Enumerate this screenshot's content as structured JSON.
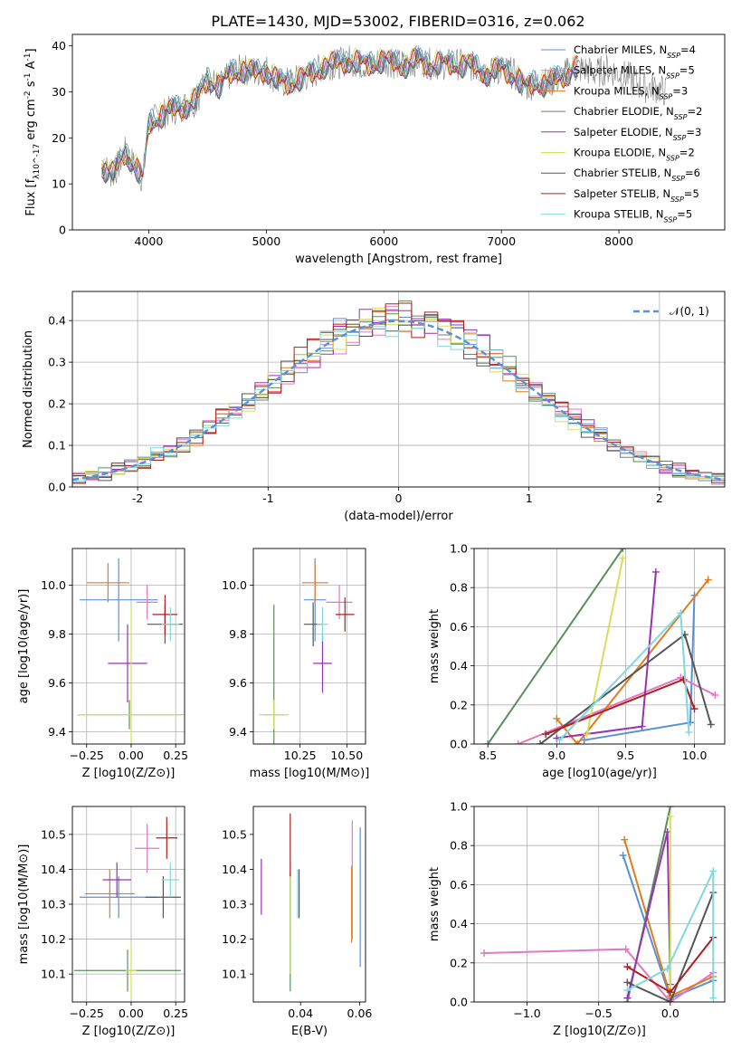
{
  "figure": {
    "title": "PLATE=1430, MJD=53002, FIBERID=0316, z=0.062"
  },
  "chart_data": [
    {
      "id": "spectrum",
      "type": "line",
      "xlabel": "wavelength [Angstrom, rest frame]",
      "ylabel": "Flux [f_λ10^-17 erg cm^-2 s^-1 A^-1]",
      "xlim": [
        3350,
        8900
      ],
      "ylim": [
        0,
        42.5
      ],
      "xticks": [
        4000,
        5000,
        6000,
        7000,
        8000
      ],
      "yticks": [
        0,
        10,
        20,
        30,
        40
      ],
      "grid": false,
      "legend_position": "lower-right",
      "observed": {
        "color": "#808080",
        "x": [
          3600,
          3700,
          3800,
          3900,
          3950,
          4000,
          4100,
          4200,
          4300,
          4400,
          4500,
          4600,
          4700,
          4800,
          4900,
          5000,
          5100,
          5200,
          5300,
          5400,
          5500,
          5600,
          5700,
          5800,
          5900,
          6000,
          6100,
          6200,
          6300,
          6400,
          6500,
          6600,
          6700,
          6800,
          6900,
          7000,
          7100,
          7200,
          7300,
          7400,
          7500,
          7600,
          7700,
          7800,
          7900,
          8000,
          8100,
          8200,
          8300,
          8400
        ],
        "y": [
          14,
          12,
          17,
          13,
          11,
          23,
          25,
          26,
          27,
          28,
          33,
          31,
          34,
          35,
          34,
          35,
          32,
          32,
          33,
          34,
          36,
          36,
          37,
          36,
          36,
          37,
          36,
          36,
          37,
          36,
          36,
          36,
          36,
          35,
          34,
          35,
          34,
          31,
          32,
          32,
          33,
          35,
          35,
          34,
          35,
          34,
          33,
          31,
          31,
          30
        ]
      },
      "series": [
        {
          "name": "Chabrier MILES",
          "nssp": "4",
          "color": "#5b8fd6",
          "offset": 0.3,
          "phase": 0.0
        },
        {
          "name": "Salpeter MILES",
          "nssp": "5",
          "color": "#e377c2",
          "offset": -0.3,
          "phase": 1.1
        },
        {
          "name": "Kroupa MILES",
          "nssp": "3",
          "color": "#e07b1f",
          "offset": 0.2,
          "phase": 2.2
        },
        {
          "name": "Chabrier ELODIE",
          "nssp": "2",
          "color": "#5a8f5a",
          "offset": -0.2,
          "phase": 0.5
        },
        {
          "name": "Salpeter ELODIE",
          "nssp": "3",
          "color": "#9a30b4",
          "offset": 0.1,
          "phase": 1.7
        },
        {
          "name": "Kroupa ELODIE",
          "nssp": "2",
          "color": "#d4e05a",
          "offset": 0.4,
          "phase": 2.9
        },
        {
          "name": "Chabrier STELIB",
          "nssp": "6",
          "color": "#555555",
          "offset": -0.4,
          "phase": 0.8
        },
        {
          "name": "Salpeter STELIB",
          "nssp": "5",
          "color": "#b01e1e",
          "offset": 0.0,
          "phase": 2.5
        },
        {
          "name": "Kroupa STELIB",
          "nssp": "5",
          "color": "#7fd8dc",
          "offset": 0.5,
          "phase": 1.4
        }
      ]
    },
    {
      "id": "residuals",
      "type": "line",
      "xlabel": "(data-model)/error",
      "ylabel": "Normed distribution",
      "xlim": [
        -2.5,
        2.5
      ],
      "ylim": [
        0,
        0.47
      ],
      "xticks": [
        -2,
        -1,
        0,
        1,
        2
      ],
      "yticks": [
        0.0,
        0.1,
        0.2,
        0.3,
        0.4
      ],
      "grid": true,
      "legend_position": "upper-right",
      "bin_width": 0.1,
      "reference": {
        "name": "𝒩(0, 1)",
        "color": "#5b8fd6",
        "style": "dashed"
      }
    },
    {
      "id": "age-vs-Z",
      "type": "scatter",
      "xlabel": "Z [log10(Z/Z⊙)]",
      "ylabel": "age [log10(age/yr)]",
      "xlim": [
        -0.33,
        0.3
      ],
      "ylim": [
        9.35,
        10.15
      ],
      "xticks": [
        -0.25,
        0.0,
        0.25
      ],
      "xtick_labels": [
        "−0.25",
        "0.00",
        "0.25"
      ],
      "yticks": [
        9.4,
        9.6,
        9.8,
        10.0
      ],
      "yticklabels": [
        "9.4",
        "9.6",
        "9.8",
        "10.0"
      ],
      "grid": true,
      "points": [
        {
          "x": -0.07,
          "y": 9.94,
          "xerr": 0.22,
          "yerr": 0.17,
          "color": "#5b8fd6"
        },
        {
          "x": 0.09,
          "y": 9.93,
          "xerr": 0.06,
          "yerr": 0.07,
          "color": "#e377c2"
        },
        {
          "x": -0.13,
          "y": 10.01,
          "xerr": 0.12,
          "yerr": 0.08,
          "color": "#e07b1f"
        },
        {
          "x": -0.01,
          "y": 9.47,
          "xerr": 0.29,
          "yerr": 0.06,
          "color": "#5a8f5a"
        },
        {
          "x": -0.02,
          "y": 9.68,
          "xerr": 0.11,
          "yerr": 0.16,
          "color": "#9a30b4"
        },
        {
          "x": 0.0,
          "y": 9.47,
          "xerr": 0.3,
          "yerr": 0.44,
          "color": "#d4e05a"
        },
        {
          "x": 0.19,
          "y": 9.84,
          "xerr": 0.1,
          "yerr": 0.08,
          "color": "#555555"
        },
        {
          "x": 0.19,
          "y": 9.88,
          "xerr": 0.07,
          "yerr": 0.08,
          "color": "#b01e1e"
        },
        {
          "x": 0.22,
          "y": 9.84,
          "xerr": 0.05,
          "yerr": 0.07,
          "color": "#7fd8dc"
        }
      ]
    },
    {
      "id": "age-vs-mass",
      "type": "scatter",
      "xlabel": "mass [log10(M/M⊙)]",
      "xlim": [
        10.0,
        10.6
      ],
      "ylim": [
        9.35,
        10.15
      ],
      "xticks": [
        10.25,
        10.5
      ],
      "xtick_labels": [
        "10.25",
        "10.50"
      ],
      "yticks": [
        9.4,
        9.6,
        9.8,
        10.0
      ],
      "yticklabels": [
        "9.4",
        "9.6",
        "9.8",
        "10.0"
      ],
      "grid": true,
      "points": [
        {
          "x": 10.33,
          "y": 9.94,
          "xerr": 0.06,
          "yerr": 0.17,
          "color": "#5b8fd6"
        },
        {
          "x": 10.46,
          "y": 9.93,
          "xerr": 0.07,
          "yerr": 0.07,
          "color": "#e377c2"
        },
        {
          "x": 10.33,
          "y": 10.01,
          "xerr": 0.07,
          "yerr": 0.08,
          "color": "#e07b1f"
        },
        {
          "x": 10.11,
          "y": 9.47,
          "xerr": 0.06,
          "yerr": 0.45,
          "color": "#5a8f5a"
        },
        {
          "x": 10.37,
          "y": 9.68,
          "xerr": 0.05,
          "yerr": 0.12,
          "color": "#9a30b4"
        },
        {
          "x": 10.11,
          "y": 9.47,
          "xerr": 0.08,
          "yerr": 0.06,
          "color": "#d4e05a"
        },
        {
          "x": 10.32,
          "y": 9.84,
          "xerr": 0.05,
          "yerr": 0.09,
          "color": "#555555"
        },
        {
          "x": 10.49,
          "y": 9.88,
          "xerr": 0.05,
          "yerr": 0.07,
          "color": "#b01e1e"
        },
        {
          "x": 10.37,
          "y": 9.84,
          "xerr": 0.03,
          "yerr": 0.07,
          "color": "#7fd8dc"
        }
      ]
    },
    {
      "id": "weight-vs-age",
      "type": "line",
      "xlabel": "age [log10(age/yr)]",
      "ylabel": "mass weight",
      "xlim": [
        8.4,
        10.22
      ],
      "ylim": [
        0,
        1.0
      ],
      "xticks": [
        8.5,
        9.0,
        9.5,
        10.0
      ],
      "xtick_labels": [
        "8.5",
        "9.0",
        "9.5",
        "10.0"
      ],
      "yticks": [
        0.0,
        0.2,
        0.4,
        0.6,
        0.8,
        1.0
      ],
      "grid": true,
      "series": [
        {
          "color": "#5b8fd6",
          "x": [
            9.2,
            9.97,
            10.0
          ],
          "y": [
            0.02,
            0.11,
            0.76
          ]
        },
        {
          "color": "#e377c2",
          "x": [
            8.72,
            9.9,
            10.15
          ],
          "y": [
            0.0,
            0.34,
            0.25
          ]
        },
        {
          "color": "#e07b1f",
          "x": [
            9.0,
            9.15,
            10.1
          ],
          "y": [
            0.13,
            0.0,
            0.84
          ]
        },
        {
          "color": "#5a8f5a",
          "x": [
            8.5,
            9.48
          ],
          "y": [
            0.0,
            1.0
          ]
        },
        {
          "color": "#9a30b4",
          "x": [
            9.0,
            9.62,
            9.72
          ],
          "y": [
            0.03,
            0.09,
            0.88
          ]
        },
        {
          "color": "#d4e05a",
          "x": [
            9.22,
            9.48
          ],
          "y": [
            0.05,
            0.95
          ]
        },
        {
          "color": "#555555",
          "x": [
            8.88,
            9.93,
            10.12
          ],
          "y": [
            0.0,
            0.56,
            0.1
          ]
        },
        {
          "color": "#b01e1e",
          "x": [
            8.92,
            9.92,
            10.0
          ],
          "y": [
            0.05,
            0.33,
            0.18
          ]
        },
        {
          "color": "#7fd8dc",
          "x": [
            9.02,
            9.9,
            9.96
          ],
          "y": [
            0.02,
            0.67,
            0.06
          ]
        }
      ]
    },
    {
      "id": "mass-vs-Z",
      "type": "scatter",
      "xlabel": "Z [log10(Z/Z⊙)]",
      "ylabel": "mass [log10(M/M⊙)]",
      "xlim": [
        -0.33,
        0.3
      ],
      "ylim": [
        10.02,
        10.58
      ],
      "xticks": [
        -0.25,
        0.0,
        0.25
      ],
      "xtick_labels": [
        "−0.25",
        "0.00",
        "0.25"
      ],
      "yticks": [
        10.1,
        10.2,
        10.3,
        10.4,
        10.5
      ],
      "yticklabels": [
        "10.1",
        "10.2",
        "10.3",
        "10.4",
        "10.5"
      ],
      "grid": true,
      "points": [
        {
          "x": -0.07,
          "y": 10.32,
          "xerr": 0.22,
          "yerr": 0.06,
          "color": "#5b8fd6"
        },
        {
          "x": 0.09,
          "y": 10.46,
          "xerr": 0.07,
          "yerr": 0.07,
          "color": "#e377c2"
        },
        {
          "x": -0.12,
          "y": 10.33,
          "xerr": 0.14,
          "yerr": 0.07,
          "color": "#e07b1f"
        },
        {
          "x": -0.02,
          "y": 10.11,
          "xerr": 0.3,
          "yerr": 0.06,
          "color": "#5a8f5a"
        },
        {
          "x": -0.08,
          "y": 10.37,
          "xerr": 0.08,
          "yerr": 0.05,
          "color": "#9a30b4"
        },
        {
          "x": 0.0,
          "y": 10.11,
          "xerr": 0.03,
          "yerr": 0.08,
          "color": "#d4e05a"
        },
        {
          "x": 0.18,
          "y": 10.32,
          "xerr": 0.1,
          "yerr": 0.06,
          "color": "#555555"
        },
        {
          "x": 0.2,
          "y": 10.49,
          "xerr": 0.06,
          "yerr": 0.06,
          "color": "#b01e1e"
        },
        {
          "x": 0.22,
          "y": 10.37,
          "xerr": 0.05,
          "yerr": 0.05,
          "color": "#7fd8dc"
        }
      ]
    },
    {
      "id": "mass-vs-EBV",
      "type": "scatter",
      "xlabel": "E(B-V)",
      "xlim": [
        0.024,
        0.062
      ],
      "ylim": [
        10.02,
        10.58
      ],
      "xticks": [
        0.04,
        0.06
      ],
      "xtick_labels": [
        "0.04",
        "0.06"
      ],
      "yticks": [
        10.1,
        10.2,
        10.3,
        10.4,
        10.5
      ],
      "yticklabels": [
        "10.1",
        "10.2",
        "10.3",
        "10.4",
        "10.5"
      ],
      "grid": false,
      "points": [
        {
          "x": 0.0602,
          "y": 10.32,
          "xerr": 0,
          "yerr": 0.2,
          "color": "#5b8fd6"
        },
        {
          "x": 0.0575,
          "y": 10.37,
          "xerr": 0,
          "yerr": 0.17,
          "color": "#e377c2"
        },
        {
          "x": 0.0573,
          "y": 10.3,
          "xerr": 0,
          "yerr": 0.11,
          "color": "#e07b1f"
        },
        {
          "x": 0.0365,
          "y": 10.22,
          "xerr": 0,
          "yerr": 0.17,
          "color": "#5a8f5a"
        },
        {
          "x": 0.0267,
          "y": 10.35,
          "xerr": 0,
          "yerr": 0.08,
          "color": "#9a30b4"
        },
        {
          "x": 0.0366,
          "y": 10.26,
          "xerr": 0,
          "yerr": 0.16,
          "color": "#d4e05a"
        },
        {
          "x": 0.0395,
          "y": 10.33,
          "xerr": 0,
          "yerr": 0.07,
          "color": "#555555"
        },
        {
          "x": 0.0365,
          "y": 10.47,
          "xerr": 0,
          "yerr": 0.09,
          "color": "#b01e1e"
        },
        {
          "x": 0.039,
          "y": 10.33,
          "xerr": 0,
          "yerr": 0.07,
          "color": "#7fd8dc"
        }
      ]
    },
    {
      "id": "weight-vs-Z",
      "type": "line",
      "xlabel": "Z [log10(Z/Z⊙)]",
      "ylabel": "mass weight",
      "xlim": [
        -1.37,
        0.38
      ],
      "ylim": [
        0,
        1.0
      ],
      "xticks": [
        -1.0,
        -0.5,
        0.0
      ],
      "xtick_labels": [
        "−1.0",
        "−0.5",
        "0.0"
      ],
      "yticks": [
        0.0,
        0.2,
        0.4,
        0.6,
        0.8,
        1.0
      ],
      "yticklabels": [
        "0.0",
        "0.2",
        "0.4",
        "0.6",
        "0.8",
        "1.0"
      ],
      "grid": true,
      "series": [
        {
          "color": "#5b8fd6",
          "x": [
            -0.33,
            0.0,
            0.3
          ],
          "y": [
            0.75,
            0.02,
            0.11
          ]
        },
        {
          "color": "#e377c2",
          "x": [
            -1.3,
            -0.31,
            0.0,
            0.3
          ],
          "y": [
            0.25,
            0.27,
            0.0,
            0.15
          ]
        },
        {
          "color": "#e07b1f",
          "x": [
            -0.32,
            0.0,
            0.3
          ],
          "y": [
            0.83,
            0.03,
            0.13
          ]
        },
        {
          "color": "#5a8f5a",
          "x": [
            -0.3,
            0.0
          ],
          "y": [
            0.0,
            1.0
          ]
        },
        {
          "color": "#9a30b4",
          "x": [
            -0.3,
            -0.02,
            0.0
          ],
          "y": [
            0.02,
            0.87,
            0.09
          ]
        },
        {
          "color": "#d4e05a",
          "x": [
            0.0,
            0.0
          ],
          "y": [
            0.05,
            0.95
          ]
        },
        {
          "color": "#555555",
          "x": [
            -0.3,
            0.0,
            0.3
          ],
          "y": [
            0.1,
            0.0,
            0.56
          ]
        },
        {
          "color": "#b01e1e",
          "x": [
            -0.3,
            0.0,
            0.3
          ],
          "y": [
            0.18,
            0.05,
            0.33
          ]
        },
        {
          "color": "#7fd8dc",
          "x": [
            -0.3,
            -0.02,
            0.3,
            0.3
          ],
          "y": [
            0.06,
            0.17,
            0.67,
            0.02
          ]
        }
      ]
    }
  ]
}
